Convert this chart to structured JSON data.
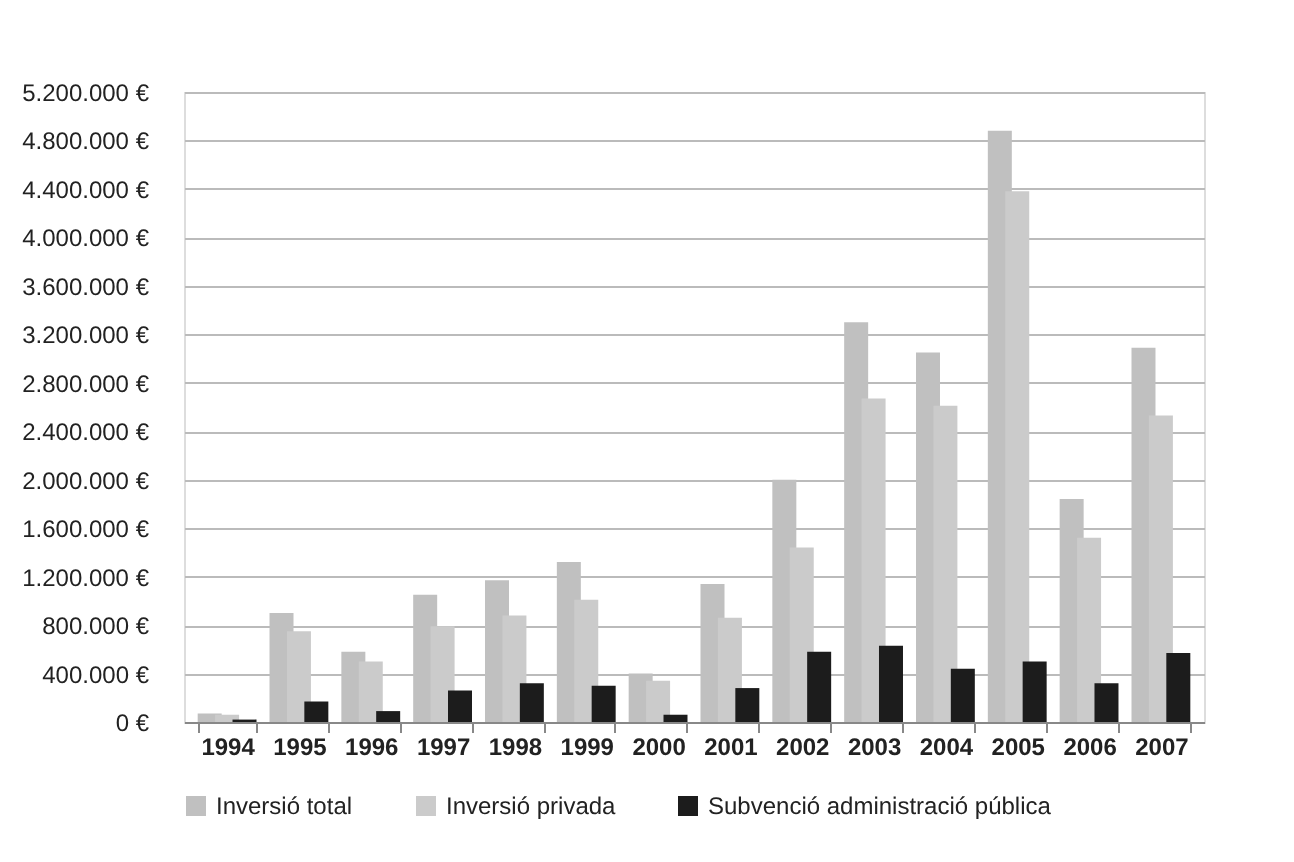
{
  "chart_data": {
    "type": "bar",
    "categories": [
      "1994",
      "1995",
      "1996",
      "1997",
      "1998",
      "1999",
      "2000",
      "2001",
      "2002",
      "2003",
      "2004",
      "2005",
      "2006",
      "2007"
    ],
    "series": [
      {
        "name": "Inversió total",
        "color": "#c0c0c0",
        "values": [
          70000,
          900000,
          580000,
          1050000,
          1170000,
          1320000,
          400000,
          1140000,
          2000000,
          3300000,
          3050000,
          4880000,
          1840000,
          3090000
        ]
      },
      {
        "name": "Inversió privada",
        "color": "#cbcbcb",
        "values": [
          60000,
          750000,
          500000,
          790000,
          880000,
          1010000,
          340000,
          860000,
          1440000,
          2670000,
          2610000,
          4380000,
          1520000,
          2530000
        ]
      },
      {
        "name": "Subvenció administració pública",
        "color": "#1c1c1c",
        "values": [
          20000,
          170000,
          90000,
          260000,
          320000,
          300000,
          60000,
          280000,
          580000,
          630000,
          440000,
          500000,
          320000,
          570000
        ]
      }
    ],
    "ylim": [
      0,
      5200000
    ],
    "yticks": [
      {
        "value": 0,
        "label": "0 €"
      },
      {
        "value": 400000,
        "label": "400.000 €"
      },
      {
        "value": 800000,
        "label": "800.000 €"
      },
      {
        "value": 1200000,
        "label": "1.200.000 €"
      },
      {
        "value": 1600000,
        "label": "1.600.000 €"
      },
      {
        "value": 2000000,
        "label": "2.000.000 €"
      },
      {
        "value": 2400000,
        "label": "2.400.000 €"
      },
      {
        "value": 2800000,
        "label": "2.800.000 €"
      },
      {
        "value": 3200000,
        "label": "3.200.000 €"
      },
      {
        "value": 3600000,
        "label": "3.600.000 €"
      },
      {
        "value": 4000000,
        "label": "4.000.000 €"
      },
      {
        "value": 4400000,
        "label": "4.400.000 €"
      },
      {
        "value": 4800000,
        "label": "4.800.000 €"
      },
      {
        "value": 5200000,
        "label": "5.200.000 €"
      }
    ],
    "grid": "y",
    "legend": "bottom"
  }
}
